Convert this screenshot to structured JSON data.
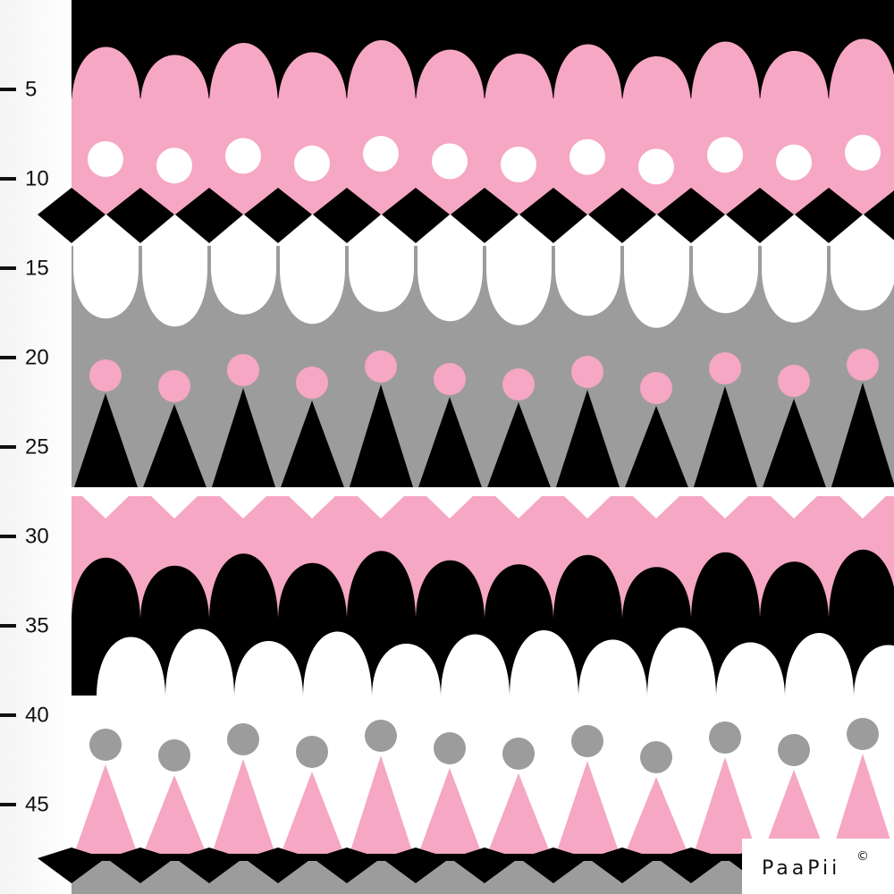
{
  "ruler": {
    "labels": [
      5,
      10,
      15,
      20,
      25,
      30,
      35,
      40,
      45
    ]
  },
  "logo": {
    "text": "PaaPii",
    "mark": "©"
  }
}
